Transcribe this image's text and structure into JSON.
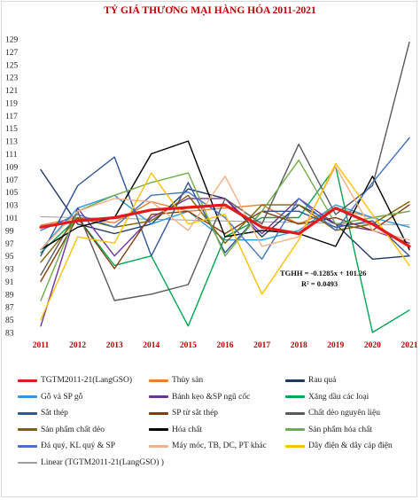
{
  "chart_data": {
    "type": "line",
    "title": "TỶ GIÁ THƯƠNG MẠI HÀNG HÓA 2011-2021",
    "x": [
      "2011",
      "2012",
      "2013",
      "2014",
      "2015",
      "2016",
      "2017",
      "2018",
      "2019",
      "2020",
      "2021"
    ],
    "ylim": [
      83,
      129
    ],
    "yticks": [
      83,
      85,
      87,
      89,
      91,
      93,
      95,
      97,
      99,
      101,
      103,
      105,
      107,
      109,
      111,
      113,
      115,
      117,
      119,
      121,
      123,
      125,
      127,
      129
    ],
    "grid": false,
    "legend_position": "bottom",
    "annotation": {
      "line1": "TGHH = -0.1285x + 101.26",
      "line2": "R² = 0.0493"
    },
    "series": [
      {
        "name": "TGTM2011-21(LangGSO)",
        "color": "#e31a1c",
        "width": 3.2,
        "values": [
          99.5,
          100.5,
          101.0,
          102.2,
          102.6,
          103.0,
          99.5,
          98.5,
          102.5,
          100.0,
          96.5
        ]
      },
      {
        "name": "Thủy sản",
        "color": "#ed7d31",
        "width": 1.4,
        "values": [
          99.8,
          101.0,
          100.2,
          103.5,
          102.0,
          102.5,
          103.0,
          100.0,
          102.5,
          101.0,
          102.0
        ]
      },
      {
        "name": "Rau quả",
        "color": "#1f3864",
        "width": 1.4,
        "values": [
          108.5,
          100.0,
          98.5,
          100.0,
          105.5,
          104.0,
          98.0,
          103.0,
          100.0,
          94.5,
          95.0
        ]
      },
      {
        "name": "Gỗ và SP gỗ",
        "color": "#2e9be0",
        "width": 1.4,
        "values": [
          96.0,
          102.5,
          104.5,
          100.0,
          102.0,
          97.5,
          97.5,
          99.0,
          103.0,
          101.0,
          99.5
        ]
      },
      {
        "name": "Bánh kẹo &SP ngũ cốc",
        "color": "#7030a0",
        "width": 1.4,
        "values": [
          84.0,
          102.5,
          95.0,
          101.0,
          104.0,
          104.0,
          98.5,
          104.0,
          100.0,
          99.0,
          97.0
        ]
      },
      {
        "name": "Xăng dầu các loại",
        "color": "#00a650",
        "width": 1.4,
        "values": [
          95.5,
          101.0,
          93.5,
          95.0,
          84.0,
          98.0,
          101.0,
          101.0,
          109.0,
          83.0,
          86.5
        ]
      },
      {
        "name": "Sắt thép",
        "color": "#2f5597",
        "width": 1.4,
        "values": [
          95.0,
          106.0,
          110.5,
          95.0,
          106.5,
          95.5,
          102.0,
          102.0,
          99.5,
          100.5,
          95.0
        ]
      },
      {
        "name": "SP từ sắt thép",
        "color": "#843c0c",
        "width": 1.4,
        "values": [
          91.0,
          101.0,
          93.0,
          101.5,
          102.0,
          98.5,
          102.0,
          100.0,
          101.0,
          99.0,
          103.0
        ]
      },
      {
        "name": "Chất dẻo nguyên liệu",
        "color": "#595959",
        "width": 1.4,
        "values": [
          92.0,
          102.0,
          88.0,
          89.0,
          90.5,
          104.0,
          100.0,
          112.5,
          101.5,
          106.0,
          128.5
        ]
      },
      {
        "name": "Sản phẩm chất dẻo",
        "color": "#806000",
        "width": 1.4,
        "values": [
          94.0,
          101.0,
          99.5,
          100.5,
          104.5,
          97.0,
          103.0,
          103.0,
          99.0,
          100.0,
          103.5
        ]
      },
      {
        "name": "Hóa chất",
        "color": "#000000",
        "width": 1.4,
        "values": [
          96.0,
          99.5,
          101.0,
          111.0,
          113.0,
          98.0,
          99.0,
          98.5,
          96.5,
          107.5,
          96.0
        ]
      },
      {
        "name": "Sản phẩm hóa chất",
        "color": "#70ad47",
        "width": 1.4,
        "values": [
          88.0,
          102.0,
          104.5,
          106.5,
          108.0,
          95.0,
          102.0,
          110.0,
          100.0,
          101.0,
          102.0
        ]
      },
      {
        "name": "Đá quý, KL quý & SP",
        "color": "#4472c4",
        "width": 1.4,
        "values": [
          99.0,
          101.5,
          99.5,
          104.5,
          105.0,
          101.0,
          94.5,
          104.0,
          99.0,
          106.5,
          113.5
        ]
      },
      {
        "name": "Máy móc, TB, DC, PT khác",
        "color": "#f4b183",
        "width": 1.4,
        "values": [
          96.0,
          102.0,
          104.0,
          103.5,
          99.0,
          107.5,
          96.5,
          98.0,
          109.0,
          99.0,
          97.5
        ]
      },
      {
        "name": "Dây điện & dây cáp điện",
        "color": "#ffc000",
        "width": 1.4,
        "values": [
          85.0,
          98.0,
          97.0,
          108.0,
          100.0,
          101.5,
          89.0,
          97.5,
          109.5,
          101.5,
          93.5
        ]
      },
      {
        "name": "Linear (TGTM2011-21(LangGSO) )",
        "color": "#9e9e9e",
        "width": 1.0,
        "trend": true,
        "values": [
          101.1315,
          101.003,
          100.8745,
          100.746,
          100.6175,
          100.489,
          100.3605,
          100.232,
          100.1035,
          99.975,
          99.8465
        ]
      }
    ]
  }
}
